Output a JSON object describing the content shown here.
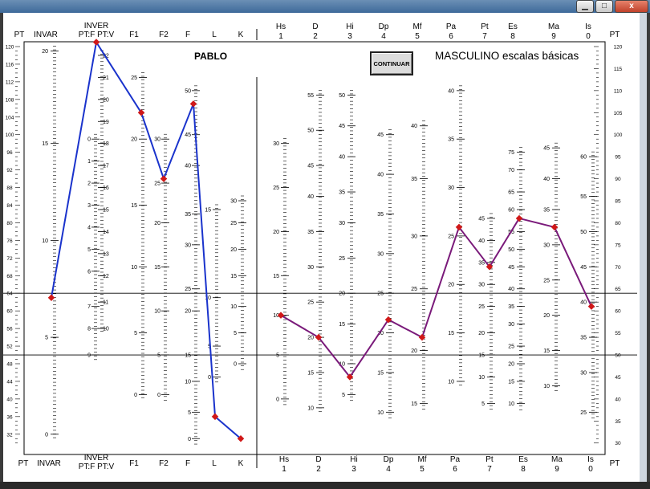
{
  "window": {
    "controls": {
      "minimize": "▁",
      "maximize": "□",
      "close": "x"
    }
  },
  "header": {
    "patient_name": "PABLO",
    "title": "MASCULINO escalas básicas",
    "continue_label": "CONTINUAR"
  },
  "chart_data": {
    "type": "line",
    "title": "MASCULINO escalas básicas",
    "ylabel": "PT",
    "ylim": [
      30,
      120
    ],
    "pt_ticks": [
      120,
      116,
      112,
      108,
      104,
      100,
      96,
      92,
      88,
      84,
      80,
      76,
      72,
      68,
      64,
      60,
      56,
      52,
      48,
      44,
      40,
      36,
      32
    ],
    "pt_ticks_right": [
      120,
      115,
      110,
      105,
      100,
      95,
      90,
      85,
      80,
      75,
      70,
      65,
      60,
      55,
      50,
      45,
      40,
      35,
      30
    ],
    "reference_lines_pt": [
      64,
      50
    ],
    "columns_left": [
      {
        "top": "PT",
        "bottom": "PT"
      },
      {
        "top": "INVAR",
        "bottom": "INVAR"
      },
      {
        "top": "INVER\nPT:F PT:V",
        "bottom": "INVER\nPT:F PT:V"
      },
      {
        "top": "F1",
        "bottom": "F1"
      },
      {
        "top": "F2",
        "bottom": "F2"
      },
      {
        "top": "F",
        "bottom": "F"
      },
      {
        "top": "L",
        "bottom": "L"
      },
      {
        "top": "K",
        "bottom": "K"
      }
    ],
    "columns_right": [
      {
        "top": "Hs\n1",
        "bottom": "Hs\n1"
      },
      {
        "top": "D\n2",
        "bottom": "D\n2"
      },
      {
        "top": "Hi\n3",
        "bottom": "Hi\n3"
      },
      {
        "top": "Dp\n4",
        "bottom": "Dp\n4"
      },
      {
        "top": "Mf\n5",
        "bottom": "Mf\n5"
      },
      {
        "top": "Pa\n6",
        "bottom": "Pa\n6"
      },
      {
        "top": "Pt\n7",
        "bottom": "Pt\n7"
      },
      {
        "top": "Es\n8",
        "bottom": "Es\n8"
      },
      {
        "top": "Ma\n9",
        "bottom": "Ma\n9"
      },
      {
        "top": "Is\n0",
        "bottom": "Is\n0"
      },
      {
        "top": "PT",
        "bottom": "PT"
      }
    ],
    "raw_scales": {
      "INVAR": [
        {
          "v": "20",
          "pt": 119
        },
        {
          "v": "15",
          "pt": 98
        },
        {
          "v": "10",
          "pt": 76
        },
        {
          "v": "5",
          "pt": 54
        },
        {
          "v": "0",
          "pt": 32
        }
      ],
      "INVER_F": [
        {
          "v": "0",
          "pt": 99
        },
        {
          "v": "1",
          "pt": 94
        },
        {
          "v": "2",
          "pt": 89
        },
        {
          "v": "3",
          "pt": 84
        },
        {
          "v": "4",
          "pt": 79
        },
        {
          "v": "5",
          "pt": 74
        },
        {
          "v": "6",
          "pt": 69
        },
        {
          "v": "7",
          "pt": 61
        },
        {
          "v": "8",
          "pt": 56
        },
        {
          "v": "9",
          "pt": 50
        }
      ],
      "INVER_V": [
        {
          "v": "22",
          "pt": 118
        },
        {
          "v": "21",
          "pt": 113
        },
        {
          "v": "20",
          "pt": 108
        },
        {
          "v": "19",
          "pt": 103
        },
        {
          "v": "18",
          "pt": 98
        },
        {
          "v": "17",
          "pt": 93
        },
        {
          "v": "16",
          "pt": 88
        },
        {
          "v": "15",
          "pt": 83
        },
        {
          "v": "14",
          "pt": 78
        },
        {
          "v": "13",
          "pt": 73
        },
        {
          "v": "12",
          "pt": 68
        },
        {
          "v": "11",
          "pt": 62
        },
        {
          "v": "10",
          "pt": 56
        }
      ],
      "F1": [
        {
          "v": "25",
          "pt": 113
        },
        {
          "v": "20",
          "pt": 99
        },
        {
          "v": "15",
          "pt": 84
        },
        {
          "v": "10",
          "pt": 70
        },
        {
          "v": "5",
          "pt": 55
        },
        {
          "v": "0",
          "pt": 41
        }
      ],
      "F2": [
        {
          "v": "30",
          "pt": 99
        },
        {
          "v": "25",
          "pt": 89
        },
        {
          "v": "20",
          "pt": 80
        },
        {
          "v": "15",
          "pt": 70
        },
        {
          "v": "10",
          "pt": 60
        },
        {
          "v": "5",
          "pt": 50
        },
        {
          "v": "0",
          "pt": 41
        }
      ],
      "F": [
        {
          "v": "50",
          "pt": 110
        },
        {
          "v": "45",
          "pt": 100
        },
        {
          "v": "40",
          "pt": 93
        },
        {
          "v": "35",
          "pt": 82
        },
        {
          "v": "30",
          "pt": 75
        },
        {
          "v": "25",
          "pt": 65
        },
        {
          "v": "20",
          "pt": 60
        },
        {
          "v": "15",
          "pt": 50
        },
        {
          "v": "10",
          "pt": 44
        },
        {
          "v": "5",
          "pt": 37
        },
        {
          "v": "0",
          "pt": 31
        }
      ],
      "L": [
        {
          "v": "15",
          "pt": 83
        },
        {
          "v": "10",
          "pt": 63
        },
        {
          "v": "5",
          "pt": 52
        },
        {
          "v": "0",
          "pt": 45
        }
      ],
      "K": [
        {
          "v": "30",
          "pt": 85
        },
        {
          "v": "25",
          "pt": 80
        },
        {
          "v": "20",
          "pt": 74
        },
        {
          "v": "15",
          "pt": 68
        },
        {
          "v": "10",
          "pt": 61
        },
        {
          "v": "5",
          "pt": 55
        },
        {
          "v": "0",
          "pt": 48
        }
      ],
      "Hs": [
        {
          "v": "30",
          "pt": 98
        },
        {
          "v": "25",
          "pt": 88
        },
        {
          "v": "20",
          "pt": 78
        },
        {
          "v": "15",
          "pt": 68
        },
        {
          "v": "10",
          "pt": 59
        },
        {
          "v": "5",
          "pt": 50
        },
        {
          "v": "0",
          "pt": 40
        }
      ],
      "D": [
        {
          "v": "55",
          "pt": 109
        },
        {
          "v": "50",
          "pt": 101
        },
        {
          "v": "45",
          "pt": 93
        },
        {
          "v": "40",
          "pt": 86
        },
        {
          "v": "35",
          "pt": 78
        },
        {
          "v": "30",
          "pt": 70
        },
        {
          "v": "25",
          "pt": 62
        },
        {
          "v": "20",
          "pt": 54
        },
        {
          "v": "15",
          "pt": 46
        },
        {
          "v": "10",
          "pt": 38
        }
      ],
      "Hi": [
        {
          "v": "50",
          "pt": 109
        },
        {
          "v": "45",
          "pt": 102
        },
        {
          "v": "40",
          "pt": 95
        },
        {
          "v": "35",
          "pt": 87
        },
        {
          "v": "30",
          "pt": 80
        },
        {
          "v": "25",
          "pt": 72
        },
        {
          "v": "20",
          "pt": 64
        },
        {
          "v": "15",
          "pt": 57
        },
        {
          "v": "10",
          "pt": 48
        },
        {
          "v": "5",
          "pt": 41
        }
      ],
      "Dp": [
        {
          "v": "45",
          "pt": 100
        },
        {
          "v": "40",
          "pt": 91
        },
        {
          "v": "35",
          "pt": 82
        },
        {
          "v": "30",
          "pt": 73
        },
        {
          "v": "25",
          "pt": 64
        },
        {
          "v": "20",
          "pt": 55
        },
        {
          "v": "15",
          "pt": 46
        },
        {
          "v": "10",
          "pt": 37
        }
      ],
      "Mf": [
        {
          "v": "40",
          "pt": 102
        },
        {
          "v": "35",
          "pt": 90
        },
        {
          "v": "30",
          "pt": 77
        },
        {
          "v": "25",
          "pt": 65
        },
        {
          "v": "20",
          "pt": 51
        },
        {
          "v": "15",
          "pt": 39
        }
      ],
      "Pa": [
        {
          "v": "40",
          "pt": 110
        },
        {
          "v": "35",
          "pt": 99
        },
        {
          "v": "30",
          "pt": 88
        },
        {
          "v": "25",
          "pt": 77
        },
        {
          "v": "20",
          "pt": 66
        },
        {
          "v": "15",
          "pt": 55
        },
        {
          "v": "10",
          "pt": 44
        }
      ],
      "Pt": [
        {
          "v": "45",
          "pt": 81
        },
        {
          "v": "40",
          "pt": 76
        },
        {
          "v": "35",
          "pt": 71
        },
        {
          "v": "30",
          "pt": 66
        },
        {
          "v": "25",
          "pt": 61
        },
        {
          "v": "20",
          "pt": 55
        },
        {
          "v": "15",
          "pt": 50
        },
        {
          "v": "10",
          "pt": 45
        },
        {
          "v": "5",
          "pt": 39
        }
      ],
      "Es": [
        {
          "v": "75",
          "pt": 96
        },
        {
          "v": "70",
          "pt": 92
        },
        {
          "v": "65",
          "pt": 87
        },
        {
          "v": "60",
          "pt": 83
        },
        {
          "v": "55",
          "pt": 78
        },
        {
          "v": "50",
          "pt": 74
        },
        {
          "v": "45",
          "pt": 70
        },
        {
          "v": "40",
          "pt": 65
        },
        {
          "v": "35",
          "pt": 61
        },
        {
          "v": "30",
          "pt": 57
        },
        {
          "v": "25",
          "pt": 52
        },
        {
          "v": "20",
          "pt": 48
        },
        {
          "v": "15",
          "pt": 44
        },
        {
          "v": "10",
          "pt": 39
        }
      ],
      "Ma": [
        {
          "v": "45",
          "pt": 97
        },
        {
          "v": "40",
          "pt": 90
        },
        {
          "v": "35",
          "pt": 83
        },
        {
          "v": "30",
          "pt": 75
        },
        {
          "v": "25",
          "pt": 67
        },
        {
          "v": "20",
          "pt": 59
        },
        {
          "v": "15",
          "pt": 51
        },
        {
          "v": "10",
          "pt": 43
        }
      ],
      "Is": [
        {
          "v": "60",
          "pt": 95
        },
        {
          "v": "55",
          "pt": 86
        },
        {
          "v": "50",
          "pt": 78
        },
        {
          "v": "45",
          "pt": 70
        },
        {
          "v": "40",
          "pt": 62
        },
        {
          "v": "35",
          "pt": 54
        },
        {
          "v": "30",
          "pt": 46
        },
        {
          "v": "25",
          "pt": 37
        }
      ]
    },
    "series": [
      {
        "color": "#1a33cc",
        "points": [
          {
            "col": "INVAR",
            "pt": 63
          },
          {
            "col": "INVER",
            "pt": 121
          },
          {
            "col": "F1",
            "pt": 105
          },
          {
            "col": "F2",
            "pt": 90
          },
          {
            "col": "F",
            "pt": 107
          },
          {
            "col": "L",
            "pt": 36
          },
          {
            "col": "K",
            "pt": 31
          }
        ]
      },
      {
        "color": "#7a1a7a",
        "points": [
          {
            "col": "Hs",
            "pt": 59
          },
          {
            "col": "D",
            "pt": 54
          },
          {
            "col": "Hi",
            "pt": 45
          },
          {
            "col": "Dp",
            "pt": 58
          },
          {
            "col": "Mf",
            "pt": 54
          },
          {
            "col": "Pa",
            "pt": 79
          },
          {
            "col": "Pt",
            "pt": 70
          },
          {
            "col": "Es",
            "pt": 81
          },
          {
            "col": "Ma",
            "pt": 79
          },
          {
            "col": "Is",
            "pt": 61
          }
        ]
      }
    ],
    "point_color": "#d01818"
  }
}
